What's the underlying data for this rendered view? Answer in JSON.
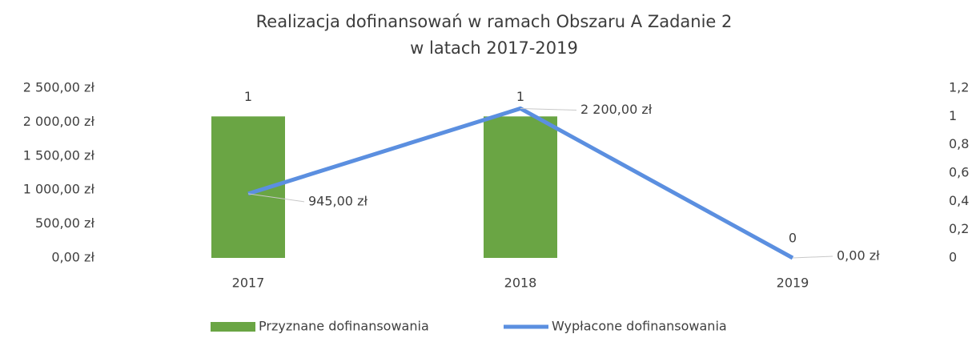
{
  "chart_data": {
    "type": "bar-line",
    "title": [
      "Realizacja dofinansowań w ramach Obszaru A Zadanie 2",
      "w latach 2017-2019"
    ],
    "categories": [
      "2017",
      "2018",
      "2019"
    ],
    "series": [
      {
        "name": "Przyznane dofinansowania",
        "type": "bar",
        "axis": "y2",
        "color": "#6aa544",
        "values": [
          1,
          1,
          0
        ]
      },
      {
        "name": "Wypłacone dofinansowania",
        "type": "line",
        "axis": "y",
        "color": "#5b8fe0",
        "values": [
          945,
          2200,
          0
        ],
        "value_labels": [
          "945,00 zł",
          "2 200,00 zł",
          "0,00 zł"
        ]
      }
    ],
    "ylim": [
      0,
      2500
    ],
    "yticks": [
      {
        "value": 0,
        "label": "0,00 zł"
      },
      {
        "value": 500,
        "label": "500,00 zł"
      },
      {
        "value": 1000,
        "label": "1 000,00 zł"
      },
      {
        "value": 1500,
        "label": "1 500,00 zł"
      },
      {
        "value": 2000,
        "label": "2 000,00 zł"
      },
      {
        "value": 2500,
        "label": "2 500,00 zł"
      }
    ],
    "y2lim": [
      0,
      1.2
    ],
    "y2ticks": [
      0,
      {
        "value": 0.2,
        "label": "0,2"
      },
      {
        "value": 0.4,
        "label": "0,4"
      },
      {
        "value": 0.6,
        "label": "0,6"
      },
      {
        "value": 0.8,
        "label": "0,8"
      },
      1,
      {
        "value": 1.2,
        "label": "1,2"
      }
    ],
    "grid": false,
    "legend": "bottom"
  }
}
